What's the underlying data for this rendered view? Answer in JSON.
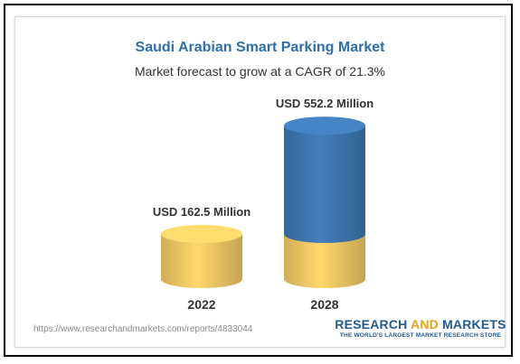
{
  "chart_data": {
    "type": "bar",
    "title": "Saudi Arabian Smart Parking Market",
    "subtitle": "Market forecast to grow at a CAGR of 21.3%",
    "categories": [
      "2022",
      "2028"
    ],
    "values": [
      162.5,
      552.2
    ],
    "data_labels": [
      "USD 162.5 Million",
      "USD 552.2 Million"
    ],
    "unit": "USD Million",
    "baseline_2028": 162.5,
    "colors": {
      "base": "#f5cd66",
      "growth": "#3f79b4",
      "title": "#2f6fa8"
    }
  },
  "footer": {
    "source_url": "https://www.researchandmarkets.com/reports/4833044",
    "brand_part1": "RESEARCH ",
    "brand_part2": "AND",
    "brand_part3": " MARKETS",
    "brand_tagline": "THE WORLD'S LARGEST MARKET RESEARCH STORE"
  }
}
